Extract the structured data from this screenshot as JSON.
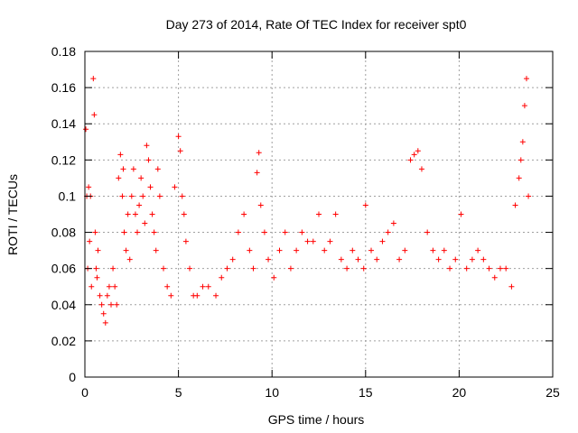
{
  "chart_data": {
    "type": "scatter",
    "title": "Day 273 of 2014, Rate Of TEC Index for receiver spt0",
    "xlabel": "GPS time / hours",
    "ylabel": "ROTI / TECUs",
    "xlim": [
      0,
      25
    ],
    "ylim": [
      0,
      0.18
    ],
    "xticks": [
      0,
      5,
      10,
      15,
      20,
      25
    ],
    "xtick_labels": [
      "0",
      "5",
      "10",
      "15",
      "20",
      "25"
    ],
    "yticks": [
      0,
      0.02,
      0.04,
      0.06,
      0.08,
      0.1,
      0.12,
      0.14,
      0.16,
      0.18
    ],
    "ytick_labels": [
      "0",
      "0.02",
      "0.04",
      "0.06",
      "0.08",
      "0.1",
      "0.12",
      "0.14",
      "0.16",
      "0.18"
    ],
    "grid": true,
    "marker": "plus",
    "color": "#ff0000",
    "series": [
      {
        "name": "ROTI spt0",
        "x": [
          0.05,
          0.1,
          0.15,
          0.2,
          0.25,
          0.3,
          0.35,
          0.45,
          0.5,
          0.55,
          0.6,
          0.65,
          0.7,
          0.8,
          0.9,
          1.0,
          1.1,
          1.2,
          1.3,
          1.4,
          1.5,
          1.6,
          1.7,
          1.8,
          1.9,
          2.0,
          2.05,
          2.1,
          2.2,
          2.3,
          2.4,
          2.5,
          2.6,
          2.7,
          2.8,
          2.9,
          3.0,
          3.1,
          3.2,
          3.3,
          3.4,
          3.5,
          3.6,
          3.7,
          3.8,
          3.9,
          4.0,
          4.2,
          4.4,
          4.6,
          4.8,
          5.0,
          5.1,
          5.2,
          5.3,
          5.4,
          5.6,
          5.8,
          6.0,
          6.3,
          6.6,
          7.0,
          7.3,
          7.6,
          7.9,
          8.2,
          8.5,
          8.8,
          9.0,
          9.2,
          9.3,
          9.4,
          9.6,
          9.8,
          10.1,
          10.4,
          10.7,
          11.0,
          11.3,
          11.6,
          11.9,
          12.2,
          12.5,
          12.8,
          13.1,
          13.4,
          13.7,
          14.0,
          14.3,
          14.6,
          14.9,
          15.0,
          15.3,
          15.6,
          15.9,
          16.2,
          16.5,
          16.8,
          17.1,
          17.4,
          17.6,
          17.8,
          18.0,
          18.3,
          18.6,
          18.9,
          19.2,
          19.5,
          19.8,
          20.1,
          20.4,
          20.7,
          21.0,
          21.3,
          21.6,
          21.9,
          22.2,
          22.5,
          22.8,
          23.0,
          23.2,
          23.3,
          23.4,
          23.5,
          23.6,
          23.7
        ],
        "y": [
          0.137,
          0.1,
          0.06,
          0.105,
          0.075,
          0.1,
          0.05,
          0.165,
          0.145,
          0.08,
          0.06,
          0.055,
          0.07,
          0.045,
          0.04,
          0.035,
          0.03,
          0.045,
          0.05,
          0.04,
          0.06,
          0.05,
          0.04,
          0.11,
          0.123,
          0.1,
          0.115,
          0.08,
          0.07,
          0.09,
          0.065,
          0.1,
          0.115,
          0.09,
          0.08,
          0.095,
          0.11,
          0.1,
          0.085,
          0.128,
          0.12,
          0.105,
          0.09,
          0.08,
          0.07,
          0.115,
          0.1,
          0.06,
          0.05,
          0.045,
          0.105,
          0.133,
          0.125,
          0.1,
          0.09,
          0.075,
          0.06,
          0.045,
          0.045,
          0.05,
          0.05,
          0.045,
          0.055,
          0.06,
          0.065,
          0.08,
          0.09,
          0.07,
          0.06,
          0.113,
          0.124,
          0.095,
          0.08,
          0.065,
          0.055,
          0.07,
          0.08,
          0.06,
          0.07,
          0.08,
          0.075,
          0.075,
          0.09,
          0.07,
          0.075,
          0.09,
          0.065,
          0.06,
          0.07,
          0.065,
          0.06,
          0.095,
          0.07,
          0.065,
          0.075,
          0.08,
          0.085,
          0.065,
          0.07,
          0.12,
          0.123,
          0.125,
          0.115,
          0.08,
          0.07,
          0.065,
          0.07,
          0.06,
          0.065,
          0.09,
          0.06,
          0.065,
          0.07,
          0.065,
          0.06,
          0.055,
          0.06,
          0.06,
          0.05,
          0.095,
          0.11,
          0.12,
          0.13,
          0.15,
          0.165,
          0.1
        ]
      }
    ]
  }
}
